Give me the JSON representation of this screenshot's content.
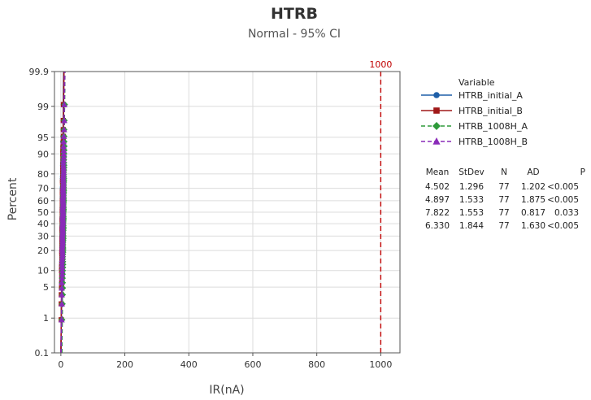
{
  "chart_data": {
    "type": "scatter",
    "title": "HTRB",
    "subtitle": "Normal - 95% CI",
    "xlabel": "IR(nA)",
    "ylabel": "Percent",
    "xlim": [
      -20,
      1060
    ],
    "x_ticks": [
      0,
      200,
      400,
      600,
      800,
      1000
    ],
    "x_tick_labels": [
      "0",
      "200",
      "400",
      "600",
      "800",
      "1000"
    ],
    "y_scale": "normal-probability",
    "ylim": [
      0.1,
      99.9
    ],
    "y_ticks": [
      0.1,
      1,
      5,
      10,
      20,
      30,
      40,
      50,
      60,
      70,
      80,
      90,
      95,
      99,
      99.9
    ],
    "y_tick_labels": [
      "0.1",
      "1",
      "5",
      "10",
      "20",
      "30",
      "40",
      "50",
      "60",
      "70",
      "80",
      "90",
      "95",
      "99",
      "99.9"
    ],
    "grid": true,
    "reference_line": {
      "x": 1000,
      "label": "1000",
      "color": "#c00000"
    },
    "legend": {
      "title": "Variable",
      "placement": "right",
      "stat_headers": [
        "Mean",
        "StDev",
        "N",
        "AD",
        "P"
      ]
    },
    "series": [
      {
        "name": "HTRB_initial_A",
        "color": "#1f5fa8",
        "marker": "circle",
        "dashed": false,
        "mean": 4.502,
        "stdev": 1.296,
        "n": 77,
        "ad": 1.202,
        "p": "<0.005",
        "stat_labels": [
          "4.502",
          "1.296",
          "77",
          "1.202",
          "<0.005"
        ]
      },
      {
        "name": "HTRB_initial_B",
        "color": "#a01818",
        "marker": "square",
        "dashed": false,
        "mean": 4.897,
        "stdev": 1.533,
        "n": 77,
        "ad": 1.875,
        "p": "<0.005",
        "stat_labels": [
          "4.897",
          "1.533",
          "77",
          "1.875",
          "<0.005"
        ]
      },
      {
        "name": "HTRB_1008H_A",
        "color": "#2e9a3a",
        "marker": "diamond",
        "dashed": true,
        "mean": 7.822,
        "stdev": 1.553,
        "n": 77,
        "ad": 0.817,
        "p": "0.033",
        "stat_labels": [
          "7.822",
          "1.553",
          "77",
          "0.817",
          "0.033"
        ]
      },
      {
        "name": "HTRB_1008H_B",
        "color": "#8a2bb8",
        "marker": "triangle",
        "dashed": true,
        "mean": 6.33,
        "stdev": 1.844,
        "n": 77,
        "ad": 1.63,
        "p": "<0.005",
        "stat_labels": [
          "6.330",
          "1.844",
          "77",
          "1.630",
          "<0.005"
        ]
      }
    ]
  }
}
